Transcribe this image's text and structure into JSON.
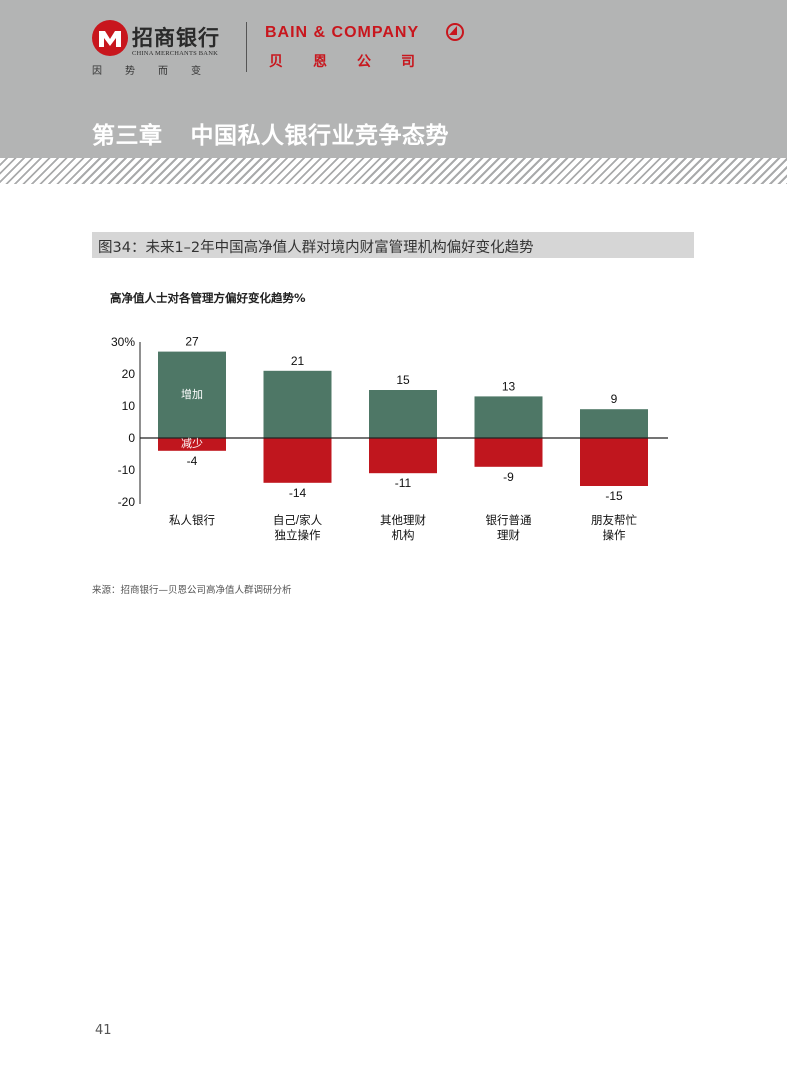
{
  "header": {
    "cmb": {
      "name": "招商银行",
      "name_en": "CHINA MERCHANTS BANK",
      "slogan": "因势而变"
    },
    "bain": {
      "name": "BAIN & COMPANY",
      "name_cn": "贝恩公司"
    },
    "chapter": {
      "number": "第三章",
      "title": "中国私人银行业竞争态势"
    }
  },
  "figure": {
    "caption": "图34：未来1–2年中国高净值人群对境内财富管理机构偏好变化趋势"
  },
  "chart_data": {
    "type": "bar",
    "title": "高净值人士对各管理方偏好变化趋势%",
    "categories": [
      [
        "私人银行"
      ],
      [
        "自己/家人",
        "独立操作"
      ],
      [
        "其他理财",
        "机构"
      ],
      [
        "银行普通",
        "理财"
      ],
      [
        "朋友帮忙",
        "操作"
      ]
    ],
    "series": [
      {
        "name": "增加",
        "values": [
          27,
          21,
          15,
          13,
          9
        ],
        "color": "#4e7766"
      },
      {
        "name": "减少",
        "values": [
          -4,
          -14,
          -11,
          -9,
          -15
        ],
        "color": "#c0161e"
      }
    ],
    "yticks": [
      "30%",
      "20",
      "10",
      "0",
      "-10",
      "-20"
    ],
    "ytick_values": [
      30,
      20,
      10,
      0,
      -10,
      -20
    ],
    "ylim": [
      -20,
      30
    ],
    "grid": false,
    "legend": "inline labels on first bar"
  },
  "source": "来源：招商银行—贝恩公司高净值人群调研分析",
  "page_number": "41"
}
